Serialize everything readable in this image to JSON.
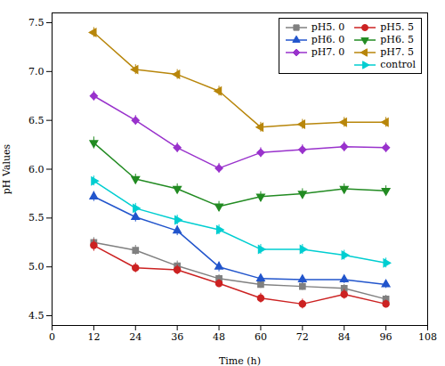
{
  "chart_data": {
    "type": "line",
    "x": [
      12,
      24,
      36,
      48,
      60,
      72,
      84,
      96
    ],
    "series": [
      {
        "name": "pH5. 0",
        "color": "#808080",
        "marker": "square",
        "values": [
          5.25,
          5.17,
          5.01,
          4.88,
          4.82,
          4.8,
          4.78,
          4.67
        ],
        "errors": [
          0.05,
          0.05,
          0.05,
          0.04,
          0.04,
          0.04,
          0.04,
          0.04
        ]
      },
      {
        "name": "pH5. 5",
        "color": "#cc2222",
        "marker": "circle",
        "values": [
          5.22,
          4.99,
          4.97,
          4.83,
          4.68,
          4.62,
          4.72,
          4.62
        ],
        "errors": [
          0.06,
          0.05,
          0.05,
          0.04,
          0.05,
          0.05,
          0.05,
          0.04
        ]
      },
      {
        "name": "pH6. 0",
        "color": "#2255cc",
        "marker": "triangle-up",
        "values": [
          5.72,
          5.51,
          5.37,
          5.0,
          4.88,
          4.87,
          4.87,
          4.82
        ],
        "errors": [
          0.05,
          0.05,
          0.05,
          0.05,
          0.04,
          0.04,
          0.04,
          0.04
        ]
      },
      {
        "name": "pH6. 5",
        "color": "#228B22",
        "marker": "triangle-down",
        "values": [
          6.27,
          5.9,
          5.8,
          5.62,
          5.72,
          5.75,
          5.8,
          5.78
        ],
        "errors": [
          0.06,
          0.05,
          0.05,
          0.05,
          0.05,
          0.05,
          0.05,
          0.05
        ]
      },
      {
        "name": "pH7. 0",
        "color": "#9932CC",
        "marker": "diamond",
        "values": [
          6.75,
          6.5,
          6.22,
          6.01,
          6.17,
          6.2,
          6.23,
          6.22
        ],
        "errors": [
          0.05,
          0.05,
          0.05,
          0.05,
          0.05,
          0.05,
          0.05,
          0.05
        ]
      },
      {
        "name": "pH7. 5",
        "color": "#B8860B",
        "marker": "triangle-left",
        "values": [
          7.4,
          7.02,
          6.97,
          6.8,
          6.43,
          6.46,
          6.48,
          6.48
        ],
        "errors": [
          0.05,
          0.05,
          0.05,
          0.05,
          0.05,
          0.05,
          0.05,
          0.05
        ]
      },
      {
        "name": "control",
        "color": "#00CED1",
        "marker": "triangle-right",
        "values": [
          5.88,
          5.6,
          5.48,
          5.38,
          5.18,
          5.18,
          5.12,
          5.04
        ],
        "errors": [
          0.05,
          0.05,
          0.05,
          0.05,
          0.05,
          0.05,
          0.05,
          0.05
        ]
      }
    ],
    "xlabel": "Time (h)",
    "ylabel": "pH Values",
    "xlim": [
      0,
      108
    ],
    "ylim": [
      4.4,
      7.6
    ],
    "xticks": [
      0,
      12,
      24,
      36,
      48,
      60,
      72,
      84,
      96,
      108
    ],
    "yticks": [
      4.5,
      {
        "value": 5.0,
        "label": "5.0"
      },
      5.5,
      {
        "value": 6.0,
        "label": "6.0"
      },
      6.5,
      {
        "value": 7.0,
        "label": "7.0"
      },
      7.5
    ],
    "legend": "upper right",
    "grid": false
  }
}
